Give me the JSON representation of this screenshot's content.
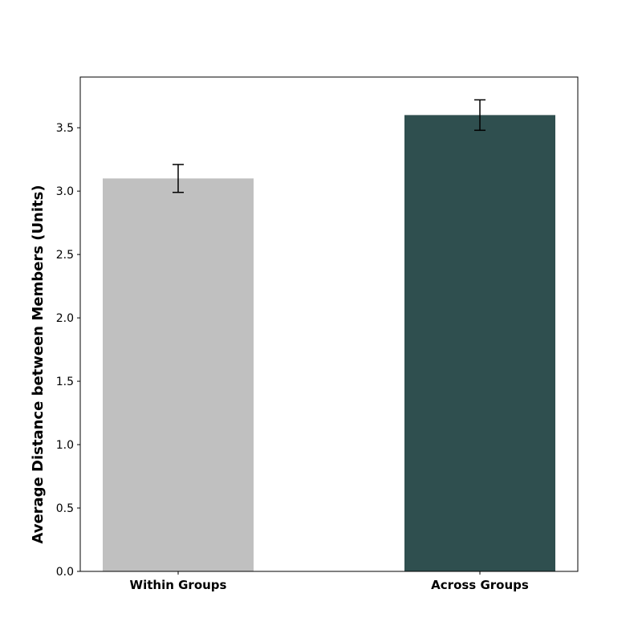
{
  "chart_data": {
    "type": "bar",
    "categories": [
      "Within Groups",
      "Across Groups"
    ],
    "values": [
      3.1,
      3.6
    ],
    "error": [
      0.11,
      0.12
    ],
    "colors": [
      "#c0c0c0",
      "#2f4f4f"
    ],
    "title": "",
    "xlabel": "",
    "ylabel": "Average Distance between Members (Units)",
    "ylim": [
      0,
      3.9
    ],
    "yticks": [
      0.0,
      0.5,
      1.0,
      1.5,
      2.0,
      2.5,
      3.0,
      3.5
    ],
    "ytick_labels": [
      "0.0",
      "0.5",
      "1.0",
      "1.5",
      "2.0",
      "2.5",
      "3.0",
      "3.5"
    ],
    "grid": false,
    "legend": "none"
  }
}
